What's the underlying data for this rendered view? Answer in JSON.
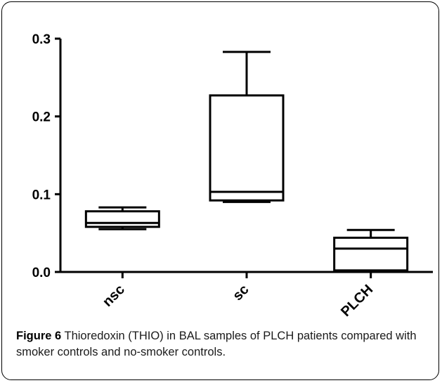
{
  "figure": {
    "label": "Figure 6",
    "caption": "Thioredoxin (THIO) in BAL samples of PLCH patients compared with smoker controls and no-smoker controls."
  },
  "chart_data": {
    "type": "box",
    "categories": [
      "nsc",
      "sc",
      "PLCH"
    ],
    "boxes": [
      {
        "category": "nsc",
        "min": 0.055,
        "q1": 0.058,
        "median": 0.063,
        "q3": 0.078,
        "max": 0.083
      },
      {
        "category": "sc",
        "min": 0.09,
        "q1": 0.092,
        "median": 0.103,
        "q3": 0.227,
        "max": 0.283
      },
      {
        "category": "PLCH",
        "min": 0.0,
        "q1": 0.002,
        "median": 0.03,
        "q3": 0.044,
        "max": 0.054
      }
    ],
    "yticks": [
      "0.0",
      "0.1",
      "0.2",
      "0.3"
    ],
    "ylim": [
      0,
      0.3
    ],
    "grid": false,
    "colors": {
      "stroke": "#000000",
      "background": "#ffffff"
    }
  }
}
